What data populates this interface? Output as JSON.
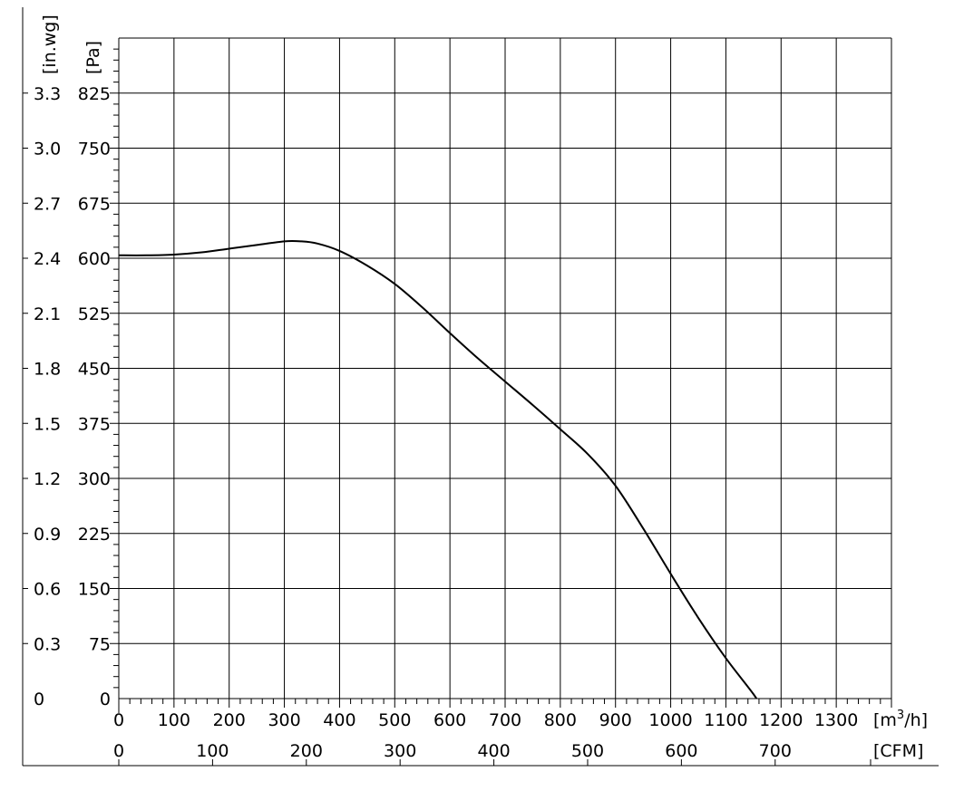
{
  "chart_data": {
    "type": "line",
    "title": "",
    "x_axis": {
      "unit": "[m³/h]",
      "unit_base": "[m",
      "unit_sup": "3",
      "unit_tail": "/h]",
      "range": [
        0,
        1400
      ],
      "ticks": [
        "0",
        "100",
        "200",
        "300",
        "400",
        "500",
        "600",
        "700",
        "800",
        "900",
        "1000",
        "1100",
        "1200",
        "1300"
      ]
    },
    "x2_axis": {
      "unit": "[CFM]",
      "ticks": [
        "0",
        "100",
        "200",
        "300",
        "400",
        "500",
        "600",
        "700"
      ],
      "tick_values_cfm": [
        0,
        100,
        200,
        300,
        400,
        500,
        600,
        700
      ]
    },
    "y_axis": {
      "unit": "[Pa]",
      "range": [
        0,
        900
      ],
      "ticks": [
        "0",
        "75",
        "150",
        "225",
        "300",
        "375",
        "450",
        "525",
        "600",
        "675",
        "750",
        "825"
      ]
    },
    "y2_axis": {
      "unit": "[in.wg]",
      "ticks": [
        "0",
        "0.3",
        "0.6",
        "0.9",
        "1.2",
        "1.5",
        "1.8",
        "2.1",
        "2.4",
        "2.7",
        "3.0",
        "3.3"
      ]
    },
    "grid": true,
    "legend": "none",
    "series": [
      {
        "x": [
          0,
          50,
          100,
          150,
          200,
          250,
          300,
          330,
          360,
          400,
          450,
          500,
          550,
          600,
          650,
          700,
          750,
          800,
          850,
          900,
          950,
          1000,
          1050,
          1100,
          1150,
          1172
        ],
        "y": [
          604,
          604,
          605,
          608,
          613,
          618,
          623,
          623,
          620,
          610,
          590,
          565,
          533,
          498,
          464,
          432,
          400,
          367,
          333,
          290,
          232,
          170,
          110,
          55,
          6,
          -20
        ]
      }
    ]
  }
}
